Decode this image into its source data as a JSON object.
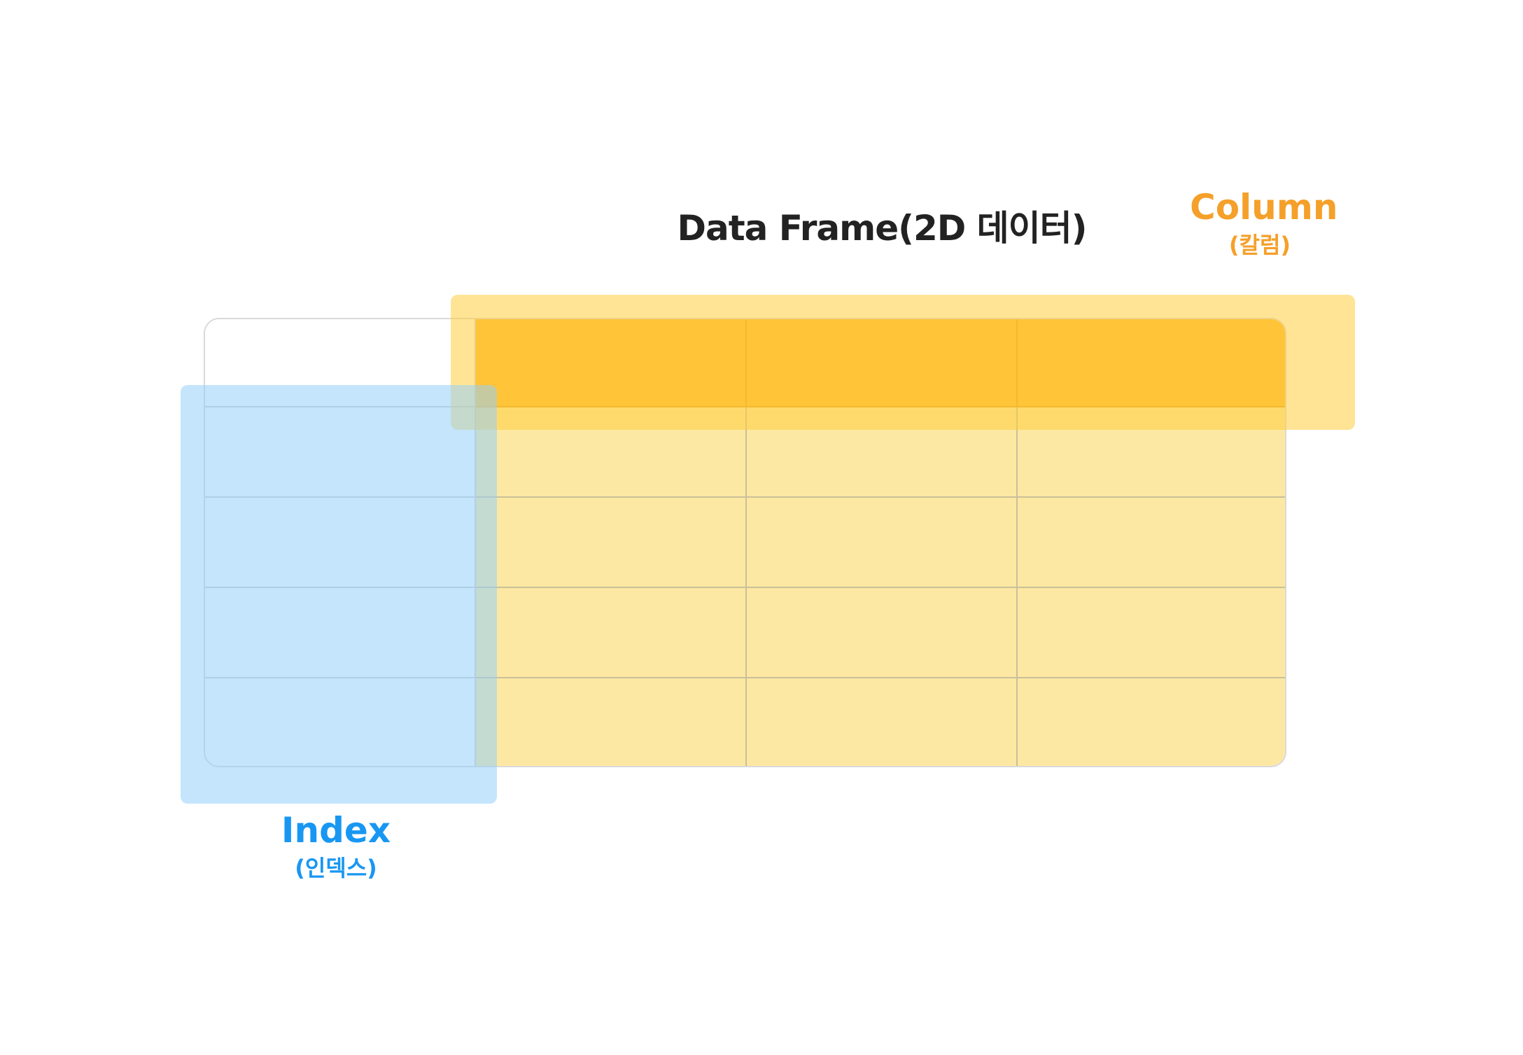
{
  "diagram": {
    "title": "Data Frame(2D 데이터)",
    "column_label": "Column",
    "column_sublabel": "(칼럼)",
    "index_label": "Index",
    "index_sublabel": "(인덱스)",
    "colors": {
      "column_accent": "#f5a02a",
      "index_accent": "#1897f2",
      "header_fill": "#ffb92e",
      "data_fill": "#fde8a3",
      "column_overlay": "#ffcd40",
      "index_overlay": "#96d0fa",
      "title_color": "#222222"
    },
    "table": {
      "data_columns": 3,
      "data_rows": 4
    }
  }
}
